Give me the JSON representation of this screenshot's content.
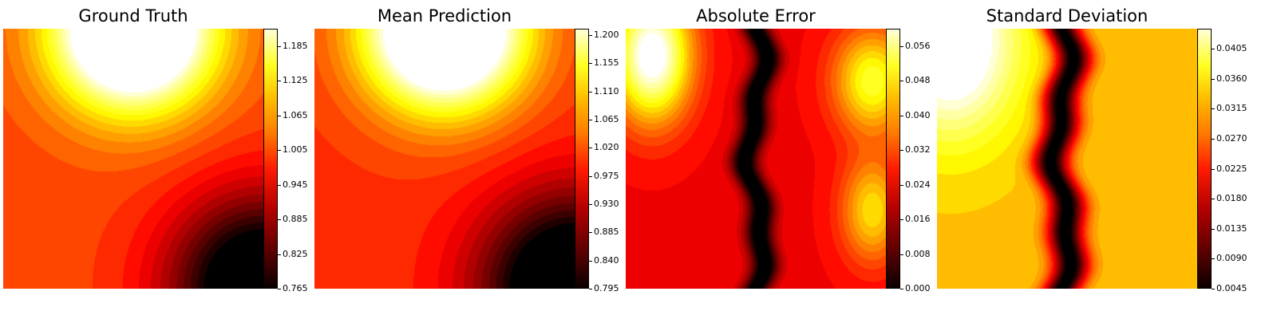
{
  "chart_data": [
    {
      "type": "heatmap",
      "title": "Ground Truth",
      "colormap": "hot",
      "colorbar": {
        "range": [
          0.765,
          1.215
        ],
        "ticks": [
          0.765,
          0.825,
          0.885,
          0.945,
          1.005,
          1.065,
          1.125,
          1.185
        ],
        "tick_labels": [
          "0.765",
          "0.825",
          "0.885",
          "0.945",
          "1.005",
          "1.065",
          "1.125",
          "1.185"
        ]
      },
      "field": {
        "features": [
          {
            "x": 0.5,
            "y": 1.0,
            "sx": 0.3,
            "sy": 0.3,
            "a": 0.42
          },
          {
            "x": 1.0,
            "y": 0.0,
            "sx": 0.35,
            "sy": 0.35,
            "a": -0.3
          }
        ],
        "base": 0.98
      }
    },
    {
      "type": "heatmap",
      "title": "Mean Prediction",
      "colormap": "hot",
      "colorbar": {
        "range": [
          0.795,
          1.21
        ],
        "ticks": [
          0.795,
          0.84,
          0.885,
          0.93,
          0.975,
          1.02,
          1.065,
          1.11,
          1.155,
          1.2
        ],
        "tick_labels": [
          "0.795",
          "0.840",
          "0.885",
          "0.930",
          "0.975",
          "1.020",
          "1.065",
          "1.110",
          "1.155",
          "1.200"
        ]
      },
      "field": {
        "features": [
          {
            "x": 0.5,
            "y": 1.0,
            "sx": 0.3,
            "sy": 0.3,
            "a": 0.4
          },
          {
            "x": 1.0,
            "y": 0.0,
            "sx": 0.35,
            "sy": 0.35,
            "a": -0.28
          }
        ],
        "base": 0.98
      }
    },
    {
      "type": "heatmap",
      "title": "Absolute Error",
      "colormap": "hot",
      "colorbar": {
        "range": [
          0.0,
          0.06
        ],
        "ticks": [
          0.0,
          0.008,
          0.016,
          0.024,
          0.032,
          0.04,
          0.048,
          0.056
        ],
        "tick_labels": [
          "0.000",
          "0.008",
          "0.016",
          "0.024",
          "0.032",
          "0.040",
          "0.048",
          "0.056"
        ]
      },
      "field": {
        "features": [
          {
            "x": 0.1,
            "y": 0.9,
            "sx": 0.15,
            "sy": 0.25,
            "a": 0.04
          },
          {
            "x": 0.95,
            "y": 0.8,
            "sx": 0.15,
            "sy": 0.2,
            "a": 0.025
          },
          {
            "x": 0.95,
            "y": 0.3,
            "sx": 0.12,
            "sy": 0.2,
            "a": 0.02
          }
        ],
        "base": 0.022,
        "valley": {
          "x": 0.5,
          "width": 0.055,
          "depth": 0.024
        }
      }
    },
    {
      "type": "heatmap",
      "title": "Standard Deviation",
      "colormap": "hot",
      "colorbar": {
        "range": [
          0.0045,
          0.0435
        ],
        "ticks": [
          0.0045,
          0.009,
          0.0135,
          0.018,
          0.0225,
          0.027,
          0.0315,
          0.036,
          0.0405
        ],
        "tick_labels": [
          "0.0045",
          "0.0090",
          "0.0135",
          "0.0180",
          "0.0225",
          "0.0270",
          "0.0315",
          "0.0360",
          "0.0405"
        ]
      },
      "field": {
        "features": [
          {
            "x": 0.05,
            "y": 0.95,
            "sx": 0.25,
            "sy": 0.35,
            "a": 0.018
          }
        ],
        "base": 0.03,
        "valley": {
          "x": 0.48,
          "width": 0.07,
          "depth": 0.026
        }
      }
    }
  ]
}
